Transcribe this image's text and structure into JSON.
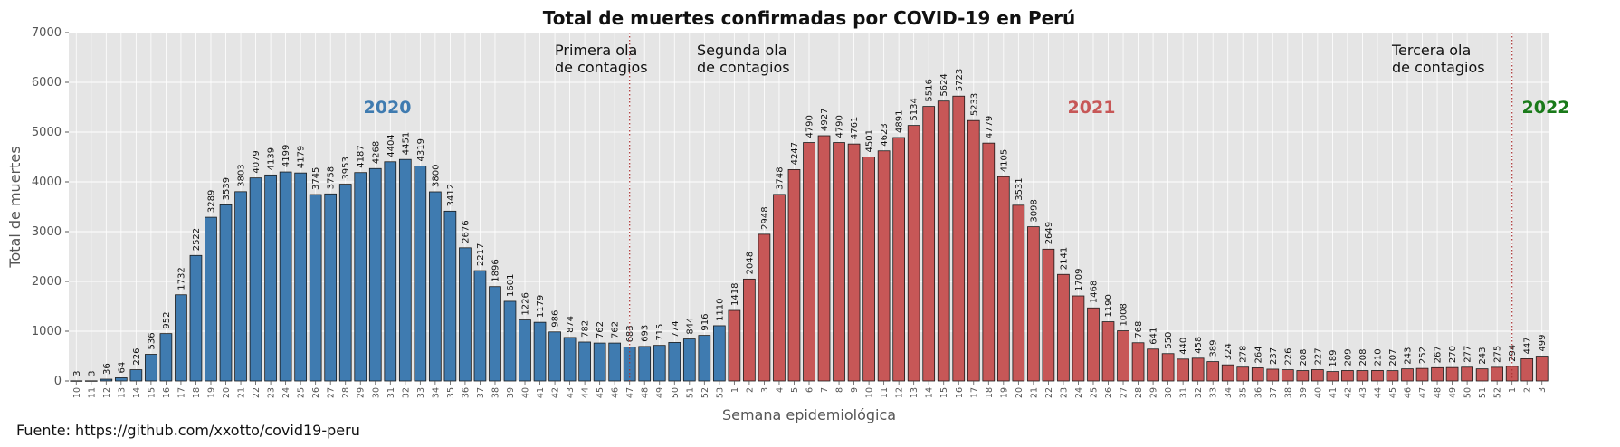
{
  "chart_data": {
    "type": "bar",
    "title": "Total de muertes confirmadas por COVID-19 en Perú",
    "xlabel": "Semana epidemiológica",
    "ylabel": "Total de muertes",
    "ylim": [
      0,
      7000
    ],
    "yticks": [
      0,
      1000,
      2000,
      3000,
      4000,
      5000,
      6000,
      7000
    ],
    "grid": true,
    "categories": [
      "10",
      "11",
      "12",
      "13",
      "14",
      "15",
      "16",
      "17",
      "18",
      "19",
      "20",
      "21",
      "22",
      "23",
      "24",
      "25",
      "26",
      "27",
      "28",
      "29",
      "30",
      "31",
      "32",
      "33",
      "34",
      "35",
      "36",
      "37",
      "38",
      "39",
      "40",
      "41",
      "42",
      "43",
      "44",
      "45",
      "46",
      "47",
      "48",
      "49",
      "50",
      "51",
      "52",
      "53",
      "1",
      "2",
      "3",
      "4",
      "5",
      "6",
      "7",
      "8",
      "9",
      "10",
      "11",
      "12",
      "13",
      "14",
      "15",
      "16",
      "17",
      "18",
      "19",
      "20",
      "21",
      "22",
      "23",
      "24",
      "25",
      "26",
      "27",
      "28",
      "29",
      "30",
      "31",
      "32",
      "33",
      "34",
      "35",
      "36",
      "37",
      "38",
      "39",
      "40",
      "41",
      "42",
      "43",
      "44",
      "45",
      "46",
      "47",
      "48",
      "49",
      "50",
      "51",
      "52",
      "1",
      "2",
      "3"
    ],
    "values": [
      3,
      3,
      36,
      64,
      226,
      536,
      952,
      1732,
      2522,
      3289,
      3539,
      3803,
      4079,
      4139,
      4199,
      4179,
      3745,
      3758,
      3953,
      4187,
      4268,
      4404,
      4451,
      4319,
      3800,
      3412,
      2676,
      2217,
      1896,
      1601,
      1226,
      1179,
      986,
      874,
      782,
      762,
      762,
      683,
      693,
      715,
      774,
      844,
      916,
      1110,
      1418,
      2048,
      2948,
      3748,
      4247,
      4790,
      4927,
      4790,
      4761,
      4501,
      4623,
      4891,
      5134,
      5516,
      5624,
      5723,
      5233,
      4779,
      4105,
      3531,
      3098,
      2649,
      2141,
      1709,
      1468,
      1190,
      1008,
      768,
      641,
      550,
      440,
      458,
      389,
      324,
      278,
      264,
      237,
      226,
      208,
      227,
      189,
      209,
      208,
      210,
      207,
      243,
      252,
      267,
      270,
      277,
      243,
      275,
      294,
      447,
      499
    ],
    "series_colors": [
      {
        "count": 44,
        "color": "#3f7bb0"
      },
      {
        "count": 55,
        "color": "#c75757"
      }
    ],
    "year_labels": [
      {
        "text": "2020",
        "color": "#3f7bb0"
      },
      {
        "text": "2021",
        "color": "#c75757"
      },
      {
        "text": "2022",
        "color": "#1a7a1a"
      }
    ],
    "wave_labels": [
      [
        "Primera ola",
        "de contagios"
      ],
      [
        "Segunda ola",
        "de contagios"
      ],
      [
        "Tercera ola",
        "de contagios"
      ]
    ],
    "vlines_after_index": [
      37,
      96
    ]
  },
  "source": "Fuente: https://github.com/xxotto/covid19-peru"
}
